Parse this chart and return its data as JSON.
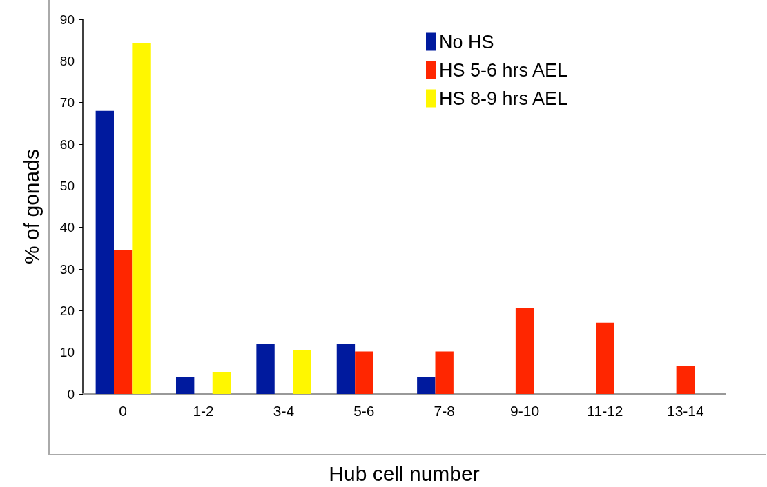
{
  "chart_data": {
    "type": "bar",
    "xlabel": "Hub cell number",
    "ylabel": "% of gonads",
    "categories": [
      "0",
      "1-2",
      "3-4",
      "5-6",
      "7-8",
      "9-10",
      "11-12",
      "13-14"
    ],
    "series": [
      {
        "name": "No HS",
        "color": "#001a9e",
        "values": [
          68,
          4.1,
          12.1,
          12.1,
          4,
          0,
          0,
          0
        ]
      },
      {
        "name": "HS 5-6 hrs AEL",
        "color": "#ff2600",
        "values": [
          34.5,
          0,
          0,
          10.2,
          10.2,
          20.6,
          17.1,
          6.8
        ]
      },
      {
        "name": "HS 8-9 hrs AEL",
        "color": "#fff700",
        "values": [
          84.2,
          5.3,
          10.5,
          0,
          0,
          0,
          0,
          0
        ]
      }
    ],
    "ylim": [
      0,
      90
    ],
    "yticks": [
      0,
      10,
      20,
      30,
      40,
      50,
      60,
      70,
      80,
      90
    ],
    "grid": false,
    "legend": "top right"
  }
}
